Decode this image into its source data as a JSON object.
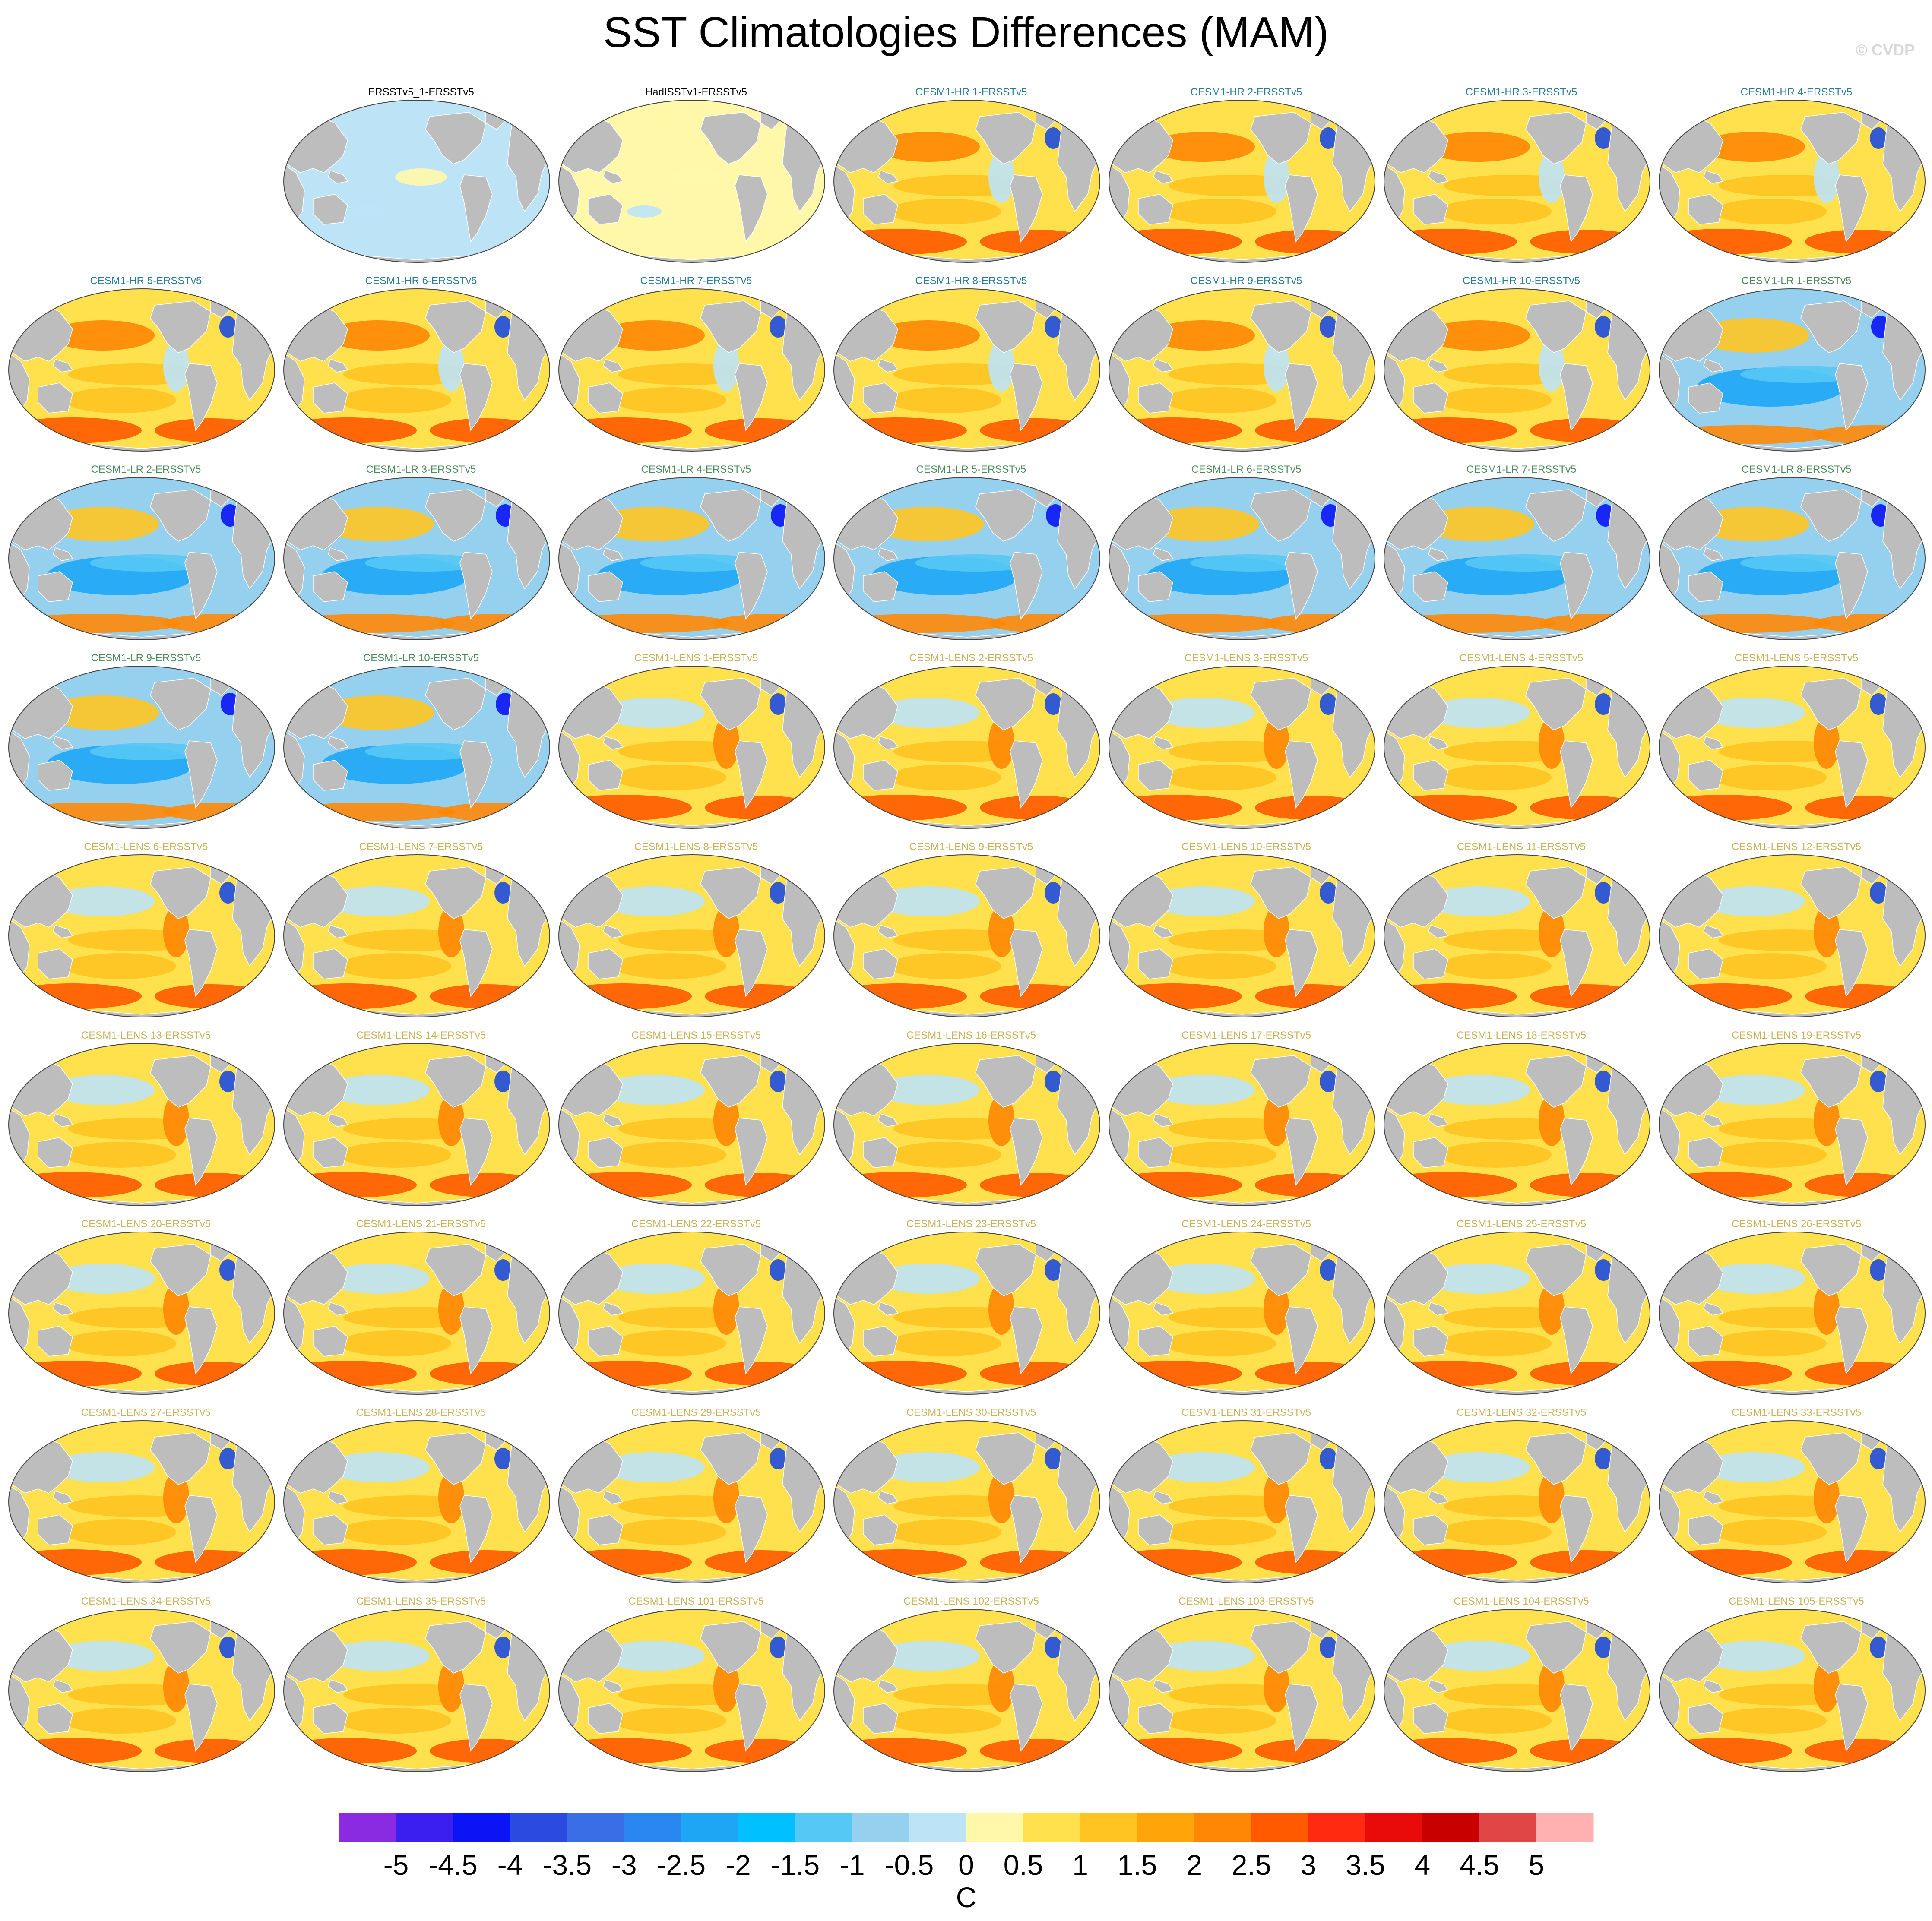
{
  "title": "SST Climatologies Differences (MAM)",
  "copyright": "© CVDP",
  "chart_data": {
    "type": "heatmap",
    "title": "SST Climatologies Differences (MAM)",
    "projection": "global map panels (Robinson-like), Pacific-centered",
    "season": "MAM",
    "units": "C",
    "colorbar": {
      "levels": [
        -5,
        -4.5,
        -4,
        -3.5,
        -3,
        -2.5,
        -2,
        -1.5,
        -1,
        -0.5,
        0,
        0.5,
        1,
        1.5,
        2,
        2.5,
        3,
        3.5,
        4,
        4.5,
        5
      ],
      "tick_labels": [
        "-5",
        "-4.5",
        "-4",
        "-3.5",
        "-3",
        "-2.5",
        "-2",
        "-1.5",
        "-1",
        "-0.5",
        "0",
        "0.5",
        "1",
        "1.5",
        "2",
        "2.5",
        "3",
        "3.5",
        "4",
        "4.5",
        "5"
      ],
      "label": "C",
      "colors": [
        "#8a2be2",
        "#3b1ef0",
        "#0a14f5",
        "#2b4be0",
        "#3a6ee6",
        "#2a86f0",
        "#1ea6f5",
        "#00c0ff",
        "#55c8f5",
        "#96d0ef",
        "#bde3f7",
        "#fff8a8",
        "#ffe14d",
        "#ffc421",
        "#ffa50a",
        "#ff8705",
        "#ff5a00",
        "#ff2a10",
        "#e90a0a",
        "#c80000",
        "#e04646",
        "#ffb0b0"
      ]
    },
    "panels": [
      {
        "row": 0,
        "col": 1,
        "title": "ERSSTv5_1-ERSSTv5",
        "group": "obs1",
        "title_color": "#000000"
      },
      {
        "row": 0,
        "col": 2,
        "title": "HadISSTv1-ERSSTv5",
        "group": "obs2",
        "title_color": "#000000"
      },
      {
        "row": 0,
        "col": 3,
        "title": "CESM1-HR 1-ERSSTv5",
        "group": "hr",
        "title_color": "#2a7a9a"
      },
      {
        "row": 0,
        "col": 4,
        "title": "CESM1-HR 2-ERSSTv5",
        "group": "hr",
        "title_color": "#2a7a9a"
      },
      {
        "row": 0,
        "col": 5,
        "title": "CESM1-HR 3-ERSSTv5",
        "group": "hr",
        "title_color": "#2a7a9a"
      },
      {
        "row": 0,
        "col": 6,
        "title": "CESM1-HR 4-ERSSTv5",
        "group": "hr",
        "title_color": "#2a7a9a"
      },
      {
        "row": 1,
        "col": 0,
        "title": "CESM1-HR 5-ERSSTv5",
        "group": "hr",
        "title_color": "#2a7a9a"
      },
      {
        "row": 1,
        "col": 1,
        "title": "CESM1-HR 6-ERSSTv5",
        "group": "hr",
        "title_color": "#2a7a9a"
      },
      {
        "row": 1,
        "col": 2,
        "title": "CESM1-HR 7-ERSSTv5",
        "group": "hr",
        "title_color": "#2a7a9a"
      },
      {
        "row": 1,
        "col": 3,
        "title": "CESM1-HR 8-ERSSTv5",
        "group": "hr",
        "title_color": "#2a7a9a"
      },
      {
        "row": 1,
        "col": 4,
        "title": "CESM1-HR 9-ERSSTv5",
        "group": "hr",
        "title_color": "#2a7a9a"
      },
      {
        "row": 1,
        "col": 5,
        "title": "CESM1-HR 10-ERSSTv5",
        "group": "hr",
        "title_color": "#2a7a9a"
      },
      {
        "row": 1,
        "col": 6,
        "title": "CESM1-LR 1-ERSSTv5",
        "group": "lr",
        "title_color": "#4a8a5a"
      },
      {
        "row": 2,
        "col": 0,
        "title": "CESM1-LR 2-ERSSTv5",
        "group": "lr",
        "title_color": "#4a8a5a"
      },
      {
        "row": 2,
        "col": 1,
        "title": "CESM1-LR 3-ERSSTv5",
        "group": "lr",
        "title_color": "#4a8a5a"
      },
      {
        "row": 2,
        "col": 2,
        "title": "CESM1-LR 4-ERSSTv5",
        "group": "lr",
        "title_color": "#4a8a5a"
      },
      {
        "row": 2,
        "col": 3,
        "title": "CESM1-LR 5-ERSSTv5",
        "group": "lr",
        "title_color": "#4a8a5a"
      },
      {
        "row": 2,
        "col": 4,
        "title": "CESM1-LR 6-ERSSTv5",
        "group": "lr",
        "title_color": "#4a8a5a"
      },
      {
        "row": 2,
        "col": 5,
        "title": "CESM1-LR 7-ERSSTv5",
        "group": "lr",
        "title_color": "#4a8a5a"
      },
      {
        "row": 2,
        "col": 6,
        "title": "CESM1-LR 8-ERSSTv5",
        "group": "lr",
        "title_color": "#4a8a5a"
      },
      {
        "row": 3,
        "col": 0,
        "title": "CESM1-LR 9-ERSSTv5",
        "group": "lr",
        "title_color": "#4a8a5a"
      },
      {
        "row": 3,
        "col": 1,
        "title": "CESM1-LR 10-ERSSTv5",
        "group": "lr",
        "title_color": "#4a8a5a"
      },
      {
        "row": 3,
        "col": 2,
        "title": "CESM1-LENS 1-ERSSTv5",
        "group": "lens",
        "title_color": "#c9b25a"
      },
      {
        "row": 3,
        "col": 3,
        "title": "CESM1-LENS 2-ERSSTv5",
        "group": "lens",
        "title_color": "#c9b25a"
      },
      {
        "row": 3,
        "col": 4,
        "title": "CESM1-LENS 3-ERSSTv5",
        "group": "lens",
        "title_color": "#c9b25a"
      },
      {
        "row": 3,
        "col": 5,
        "title": "CESM1-LENS 4-ERSSTv5",
        "group": "lens",
        "title_color": "#c9b25a"
      },
      {
        "row": 3,
        "col": 6,
        "title": "CESM1-LENS 5-ERSSTv5",
        "group": "lens",
        "title_color": "#c9b25a"
      },
      {
        "row": 4,
        "col": 0,
        "title": "CESM1-LENS 6-ERSSTv5",
        "group": "lens",
        "title_color": "#c9b25a"
      },
      {
        "row": 4,
        "col": 1,
        "title": "CESM1-LENS 7-ERSSTv5",
        "group": "lens",
        "title_color": "#c9b25a"
      },
      {
        "row": 4,
        "col": 2,
        "title": "CESM1-LENS 8-ERSSTv5",
        "group": "lens",
        "title_color": "#c9b25a"
      },
      {
        "row": 4,
        "col": 3,
        "title": "CESM1-LENS 9-ERSSTv5",
        "group": "lens",
        "title_color": "#c9b25a"
      },
      {
        "row": 4,
        "col": 4,
        "title": "CESM1-LENS 10-ERSSTv5",
        "group": "lens",
        "title_color": "#c9b25a"
      },
      {
        "row": 4,
        "col": 5,
        "title": "CESM1-LENS 11-ERSSTv5",
        "group": "lens",
        "title_color": "#c9b25a"
      },
      {
        "row": 4,
        "col": 6,
        "title": "CESM1-LENS 12-ERSSTv5",
        "group": "lens",
        "title_color": "#c9b25a"
      },
      {
        "row": 5,
        "col": 0,
        "title": "CESM1-LENS 13-ERSSTv5",
        "group": "lens",
        "title_color": "#c9b25a"
      },
      {
        "row": 5,
        "col": 1,
        "title": "CESM1-LENS 14-ERSSTv5",
        "group": "lens",
        "title_color": "#c9b25a"
      },
      {
        "row": 5,
        "col": 2,
        "title": "CESM1-LENS 15-ERSSTv5",
        "group": "lens",
        "title_color": "#c9b25a"
      },
      {
        "row": 5,
        "col": 3,
        "title": "CESM1-LENS 16-ERSSTv5",
        "group": "lens",
        "title_color": "#c9b25a"
      },
      {
        "row": 5,
        "col": 4,
        "title": "CESM1-LENS 17-ERSSTv5",
        "group": "lens",
        "title_color": "#c9b25a"
      },
      {
        "row": 5,
        "col": 5,
        "title": "CESM1-LENS 18-ERSSTv5",
        "group": "lens",
        "title_color": "#c9b25a"
      },
      {
        "row": 5,
        "col": 6,
        "title": "CESM1-LENS 19-ERSSTv5",
        "group": "lens",
        "title_color": "#c9b25a"
      },
      {
        "row": 6,
        "col": 0,
        "title": "CESM1-LENS 20-ERSSTv5",
        "group": "lens",
        "title_color": "#c9b25a"
      },
      {
        "row": 6,
        "col": 1,
        "title": "CESM1-LENS 21-ERSSTv5",
        "group": "lens",
        "title_color": "#c9b25a"
      },
      {
        "row": 6,
        "col": 2,
        "title": "CESM1-LENS 22-ERSSTv5",
        "group": "lens",
        "title_color": "#c9b25a"
      },
      {
        "row": 6,
        "col": 3,
        "title": "CESM1-LENS 23-ERSSTv5",
        "group": "lens",
        "title_color": "#c9b25a"
      },
      {
        "row": 6,
        "col": 4,
        "title": "CESM1-LENS 24-ERSSTv5",
        "group": "lens",
        "title_color": "#c9b25a"
      },
      {
        "row": 6,
        "col": 5,
        "title": "CESM1-LENS 25-ERSSTv5",
        "group": "lens",
        "title_color": "#c9b25a"
      },
      {
        "row": 6,
        "col": 6,
        "title": "CESM1-LENS 26-ERSSTv5",
        "group": "lens",
        "title_color": "#c9b25a"
      },
      {
        "row": 7,
        "col": 0,
        "title": "CESM1-LENS 27-ERSSTv5",
        "group": "lens",
        "title_color": "#c9b25a"
      },
      {
        "row": 7,
        "col": 1,
        "title": "CESM1-LENS 28-ERSSTv5",
        "group": "lens",
        "title_color": "#c9b25a"
      },
      {
        "row": 7,
        "col": 2,
        "title": "CESM1-LENS 29-ERSSTv5",
        "group": "lens",
        "title_color": "#c9b25a"
      },
      {
        "row": 7,
        "col": 3,
        "title": "CESM1-LENS 30-ERSSTv5",
        "group": "lens",
        "title_color": "#c9b25a"
      },
      {
        "row": 7,
        "col": 4,
        "title": "CESM1-LENS 31-ERSSTv5",
        "group": "lens",
        "title_color": "#c9b25a"
      },
      {
        "row": 7,
        "col": 5,
        "title": "CESM1-LENS 32-ERSSTv5",
        "group": "lens",
        "title_color": "#c9b25a"
      },
      {
        "row": 7,
        "col": 6,
        "title": "CESM1-LENS 33-ERSSTv5",
        "group": "lens",
        "title_color": "#c9b25a"
      },
      {
        "row": 8,
        "col": 0,
        "title": "CESM1-LENS 34-ERSSTv5",
        "group": "lens",
        "title_color": "#c9b25a"
      },
      {
        "row": 8,
        "col": 1,
        "title": "CESM1-LENS 35-ERSSTv5",
        "group": "lens",
        "title_color": "#c9b25a"
      },
      {
        "row": 8,
        "col": 2,
        "title": "CESM1-LENS 101-ERSSTv5",
        "group": "lens",
        "title_color": "#c9b25a"
      },
      {
        "row": 8,
        "col": 3,
        "title": "CESM1-LENS 102-ERSSTv5",
        "group": "lens",
        "title_color": "#c9b25a"
      },
      {
        "row": 8,
        "col": 4,
        "title": "CESM1-LENS 103-ERSSTv5",
        "group": "lens",
        "title_color": "#c9b25a"
      },
      {
        "row": 8,
        "col": 5,
        "title": "CESM1-LENS 104-ERSSTv5",
        "group": "lens",
        "title_color": "#c9b25a"
      },
      {
        "row": 8,
        "col": 6,
        "title": "CESM1-LENS 105-ERSSTv5",
        "group": "lens",
        "title_color": "#c9b25a"
      }
    ],
    "ocean_background_by_group": {
      "obs1": "#bde3f7",
      "obs2": "#fff8a8",
      "hr": "#ffe14d",
      "lr": "#96d0ef",
      "lens": "#ffe14d"
    },
    "land_color": "#bdbdbd"
  }
}
